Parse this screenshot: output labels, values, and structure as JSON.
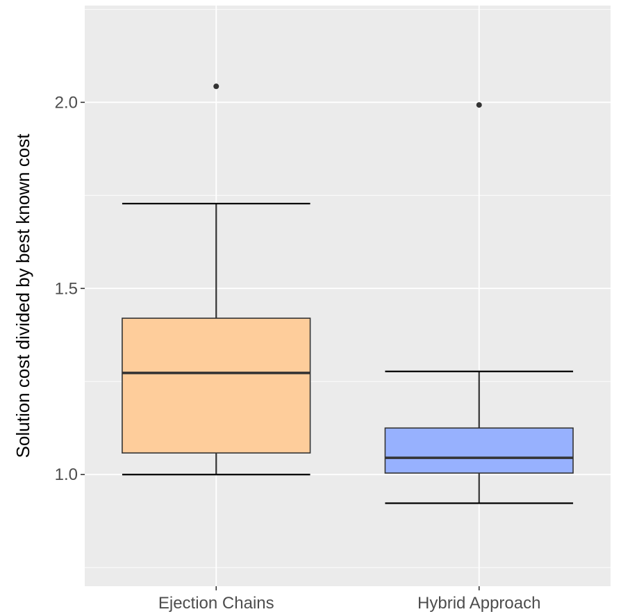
{
  "chart_data": {
    "type": "boxplot",
    "title": "",
    "xlabel": "",
    "ylabel": "Solution cost divided by best known cost",
    "ylim": [
      0.7,
      2.26
    ],
    "yticks": [
      1.0,
      1.5,
      2.0
    ],
    "ytick_labels": [
      "1.0",
      "1.5",
      "2.0"
    ],
    "grid": true,
    "background": "#ebebeb",
    "categories": [
      "Ejection Chains",
      "Hybrid Approach"
    ],
    "boxes": [
      {
        "category": "Ejection Chains",
        "whisker_low": 1.0,
        "q1": 1.058,
        "median": 1.273,
        "q3": 1.42,
        "whisker_high": 1.728,
        "outliers": [
          2.043
        ],
        "fill": "#fecd9b"
      },
      {
        "category": "Hybrid Approach",
        "whisker_low": 0.923,
        "q1": 1.004,
        "median": 1.045,
        "q3": 1.125,
        "whisker_high": 1.277,
        "outliers": [
          1.993
        ],
        "fill": "#97b1fe"
      }
    ]
  }
}
